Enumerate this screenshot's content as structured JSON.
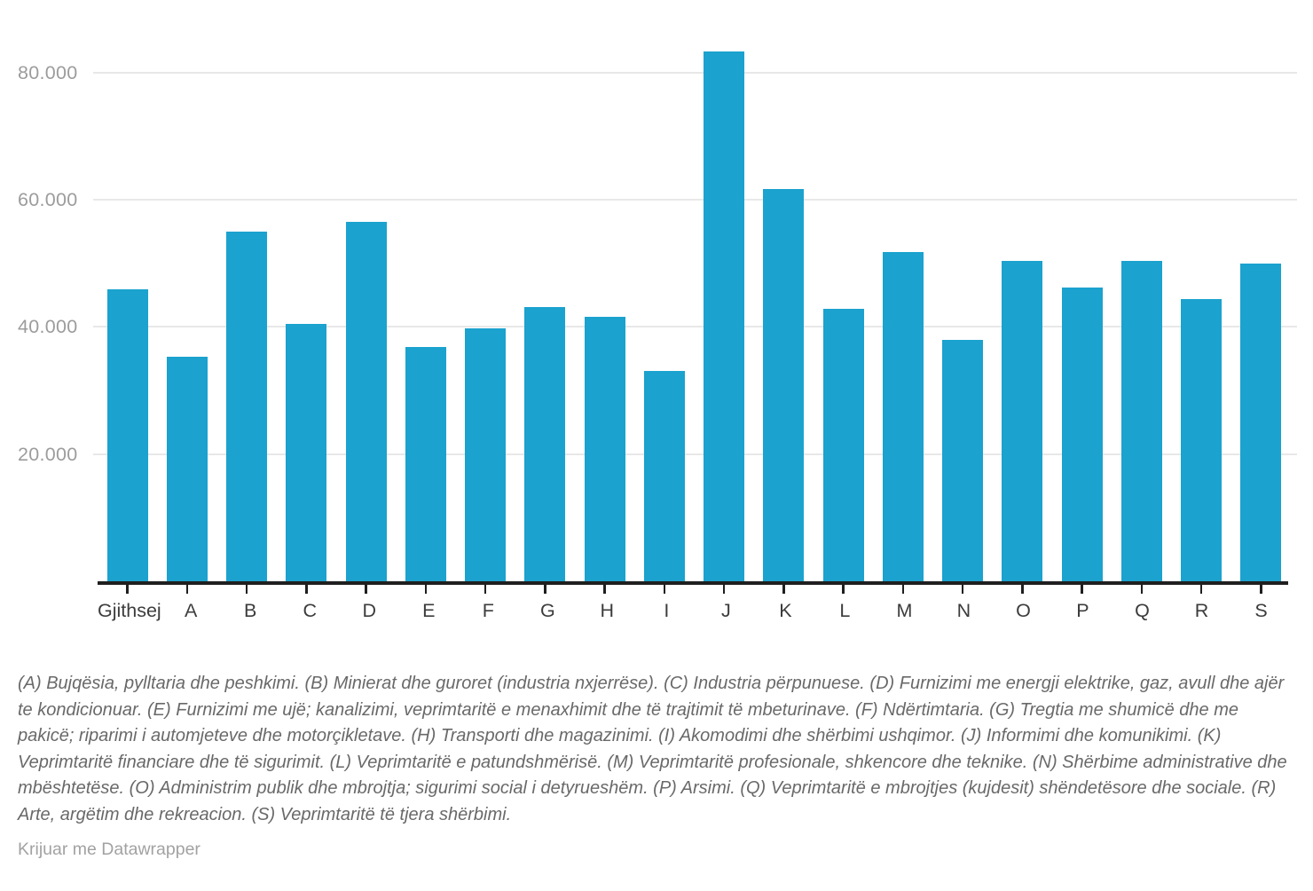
{
  "chart_data": {
    "type": "bar",
    "title": "",
    "xlabel": "",
    "ylabel": "",
    "categories": [
      "Gjithsej",
      "A",
      "B",
      "C",
      "D",
      "E",
      "F",
      "G",
      "H",
      "I",
      "J",
      "K",
      "L",
      "M",
      "N",
      "O",
      "P",
      "Q",
      "R",
      "S"
    ],
    "values": [
      46000,
      35300,
      55000,
      40500,
      56500,
      36900,
      39800,
      43100,
      41600,
      33100,
      83400,
      61700,
      42800,
      51800,
      38000,
      50400,
      46200,
      50400,
      44400,
      50000
    ],
    "ylim": [
      0,
      87000
    ],
    "yticks": [
      {
        "value": 80000,
        "label": "80.000"
      },
      {
        "value": 60000,
        "label": "60.000"
      },
      {
        "value": 40000,
        "label": "40.000"
      },
      {
        "value": 20000,
        "label": "20.000"
      }
    ],
    "grid": "horizontal",
    "legend": "none",
    "bar_color": "#1ba2ce"
  },
  "footer": {
    "note": "(A) Bujqësia, pylltaria dhe peshkimi. (B) Minierat dhe guroret (industria nxjerrëse). (C) Industria përpunuese. (D) Furnizimi me energji elektrike, gaz, avull dhe ajër te kondicionuar. (E) Furnizimi me ujë; kanalizimi, veprimtaritë e menaxhimit dhe të trajtimit të mbeturinave. (F) Ndërtimtaria. (G) Tregtia me shumicë dhe me pakicë; riparimi i automjeteve dhe motorçikletave. (H) Transporti dhe magazinimi. (I) Akomodimi dhe shërbimi ushqimor. (J) Informimi dhe komunikimi. (K) Veprimtaritë financiare dhe të sigurimit. (L) Veprimtaritë e patundshmërisë. (M) Veprimtaritë profesionale, shkencore dhe teknike. (N) Shërbime administrative dhe mbështetëse. (O) Administrim publik dhe mbrojtja; sigurimi social i detyrueshëm. (P) Arsimi. (Q) Veprimtaritë e mbrojtjes (kujdesit) shëndetësore dhe sociale. (R) Arte, argëtim dhe rekreacion. (S) Veprimtaritë të tjera shërbimi.",
    "credit": "Krijuar me Datawrapper"
  },
  "colors": {
    "bar": "#1ba2ce",
    "gridline": "#e8e8e8",
    "axis_line": "#1f1f1f",
    "y_tick_label": "#9c9c9c",
    "x_tick_label": "#3c3c3c",
    "footnote": "#696969",
    "credit": "#a2a2a2"
  }
}
